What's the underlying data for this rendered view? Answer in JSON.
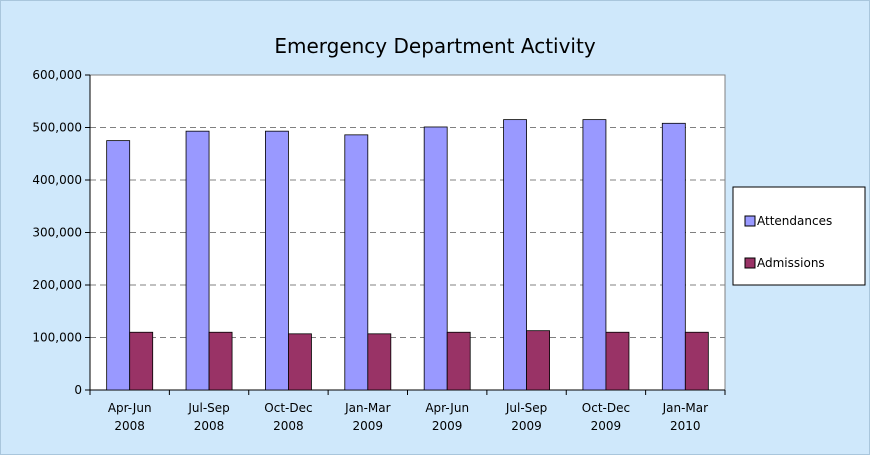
{
  "chart_data": {
    "type": "bar",
    "title": "Emergency Department Activity",
    "categories": [
      [
        "Apr-Jun",
        "2008"
      ],
      [
        "Jul-Sep",
        "2008"
      ],
      [
        "Oct-Dec",
        "2008"
      ],
      [
        "Jan-Mar",
        "2009"
      ],
      [
        "Apr-Jun",
        "2009"
      ],
      [
        "Jul-Sep",
        "2009"
      ],
      [
        "Oct-Dec",
        "2009"
      ],
      [
        "Jan-Mar",
        "2010"
      ]
    ],
    "series": [
      {
        "name": "Attendances",
        "color": "#9999ff",
        "values": [
          475000,
          493000,
          493000,
          486000,
          501000,
          515000,
          515000,
          508000
        ]
      },
      {
        "name": "Admissions",
        "color": "#993366",
        "values": [
          110000,
          110000,
          107000,
          107000,
          110000,
          113000,
          110000,
          110000
        ]
      }
    ],
    "ylim": [
      0,
      600000
    ],
    "yticks": [
      0,
      {
        "value": 100000,
        "label": "100,000"
      },
      {
        "value": 200000,
        "label": "200,000"
      },
      {
        "value": 300000,
        "label": "300,000"
      },
      {
        "value": 400000,
        "label": "400,000"
      },
      {
        "value": 500000,
        "label": "500,000"
      },
      {
        "value": 600000,
        "label": "600,000"
      }
    ],
    "grid": true,
    "legend": "right"
  }
}
